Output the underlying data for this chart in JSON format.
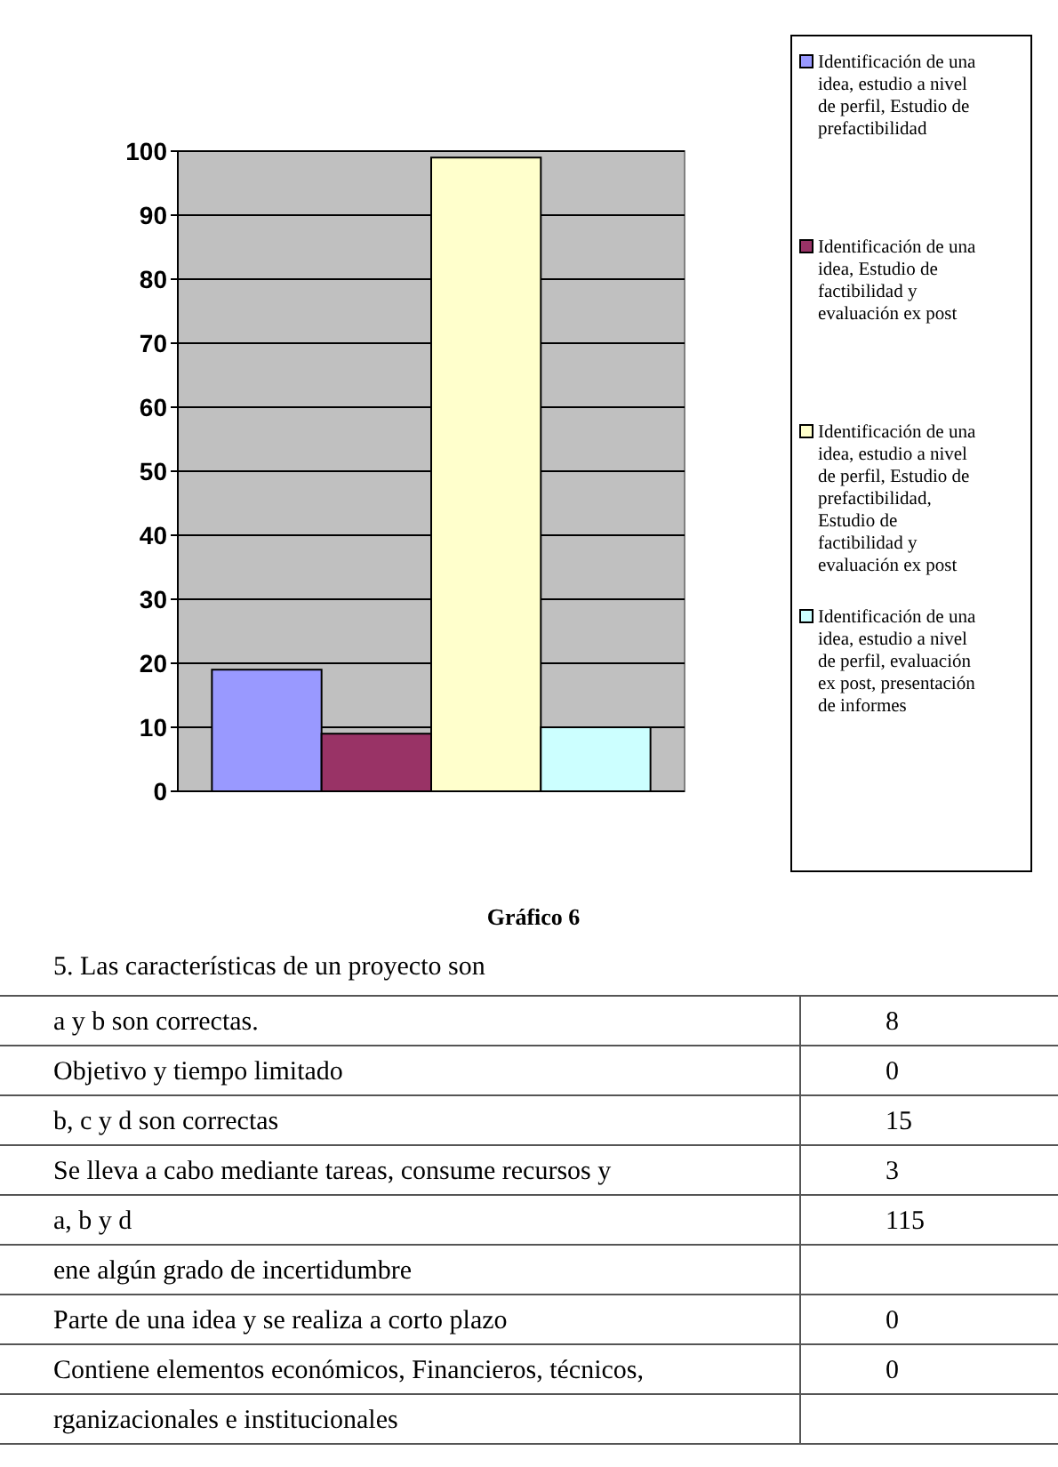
{
  "chart_data": {
    "type": "bar",
    "title": "Gráfico 6",
    "categories": [
      null
    ],
    "series": [
      {
        "name": "Identificación de una idea, estudio a nivel de perfil, Estudio de prefactibilidad",
        "color": "#9999ff",
        "values": [
          19
        ]
      },
      {
        "name": "Identificación de una idea, Estudio de factibilidad y evaluación ex post",
        "color": "#993366",
        "values": [
          9
        ]
      },
      {
        "name": "Identificación de una idea, estudio a nivel de perfil, Estudio de prefactibilidad, Estudio de factibilidad y evaluación ex post",
        "color": "#ffffcc",
        "values": [
          99
        ]
      },
      {
        "name": "Identificación de una idea, estudio a nivel de perfil, evaluación ex post, presentación de informes",
        "color": "#ccffff",
        "values": [
          10
        ]
      }
    ],
    "ylim": [
      0,
      100
    ],
    "yticks": [
      0,
      10,
      20,
      30,
      40,
      50,
      60,
      70,
      80,
      90,
      100
    ],
    "grid": "y",
    "legend": "right",
    "annotations": [
      "5. Las características de un proyecto son",
      "a y b son correctas.",
      "8",
      "Objetivo y tiempo limitado",
      "0",
      "b, c y d son correctas",
      "15",
      "Se lleva a cabo mediante tareas, consume recursos y",
      "3",
      "a, b y d",
      "115",
      "ene algún grado de incertidumbre",
      "Parte de una idea y se realiza a corto plazo",
      "0",
      "Contiene elementos económicos, Financieros, técnicos,",
      "0",
      "rganizacionales e institucionales"
    ]
  }
}
